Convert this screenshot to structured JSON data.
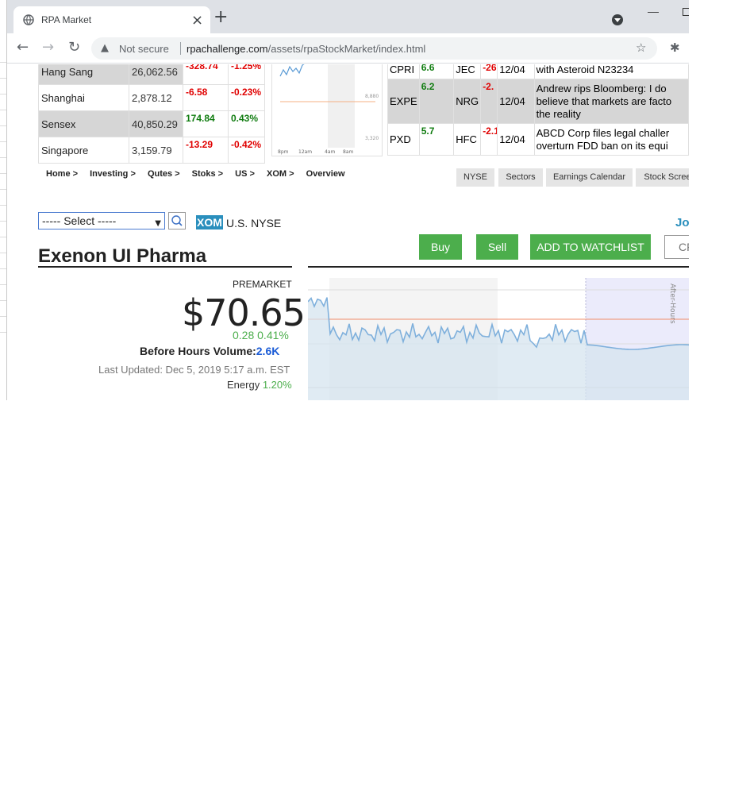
{
  "browser": {
    "tab_title": "RPA Market",
    "new_tab": "+",
    "close_tab": "×",
    "security_label": "Not secure",
    "url_host": "rpachallenge.com",
    "url_path": "/assets/rpaStockMarket/index.html"
  },
  "indices": [
    {
      "name": "Hang Sang",
      "value": "26,062.56",
      "change": "-328.74",
      "percent": "-1.25%",
      "direction": "down"
    },
    {
      "name": "Shanghai",
      "value": "2,878.12",
      "change": "-6.58",
      "percent": "-0.23%",
      "direction": "down"
    },
    {
      "name": "Sensex",
      "value": "40,850.29",
      "change": "174.84",
      "percent": "0.43%",
      "direction": "up"
    },
    {
      "name": "Singapore",
      "value": "3,159.79",
      "change": "-13.29",
      "percent": "-0.42%",
      "direction": "down"
    }
  ],
  "mini_chart": {
    "y_labels": [
      "8,880",
      "3,320"
    ],
    "x_labels": [
      "8pm",
      "12am",
      "4am",
      "8am"
    ]
  },
  "movers": [
    {
      "sym": "CPRI",
      "ch": "6.6",
      "sym2": "JEC",
      "ch2": "-26",
      "date": "12/04",
      "news": "with Asteroid N23234"
    },
    {
      "sym": "EXPE",
      "ch": "6.2",
      "sym2": "NRG",
      "ch2": "-2.",
      "date": "12/04",
      "news1": "Andrew rips Bloomberg: I do",
      "news2": "believe that markets are facto",
      "news3": "the reality"
    },
    {
      "sym": "PXD",
      "ch": "5.7",
      "sym2": "HFC",
      "ch2": "-2.1",
      "date": "12/04",
      "news1": "ABCD Corp files legal challer",
      "news2": "overturn FDD ban on its equi"
    }
  ],
  "breadcrumbs": [
    "Home >",
    "Investing >",
    "Qutes >",
    "Stoks >",
    "US >",
    "XOM >",
    "Overview"
  ],
  "top_nav": [
    "NYSE",
    "Sectors",
    "Earnings Calendar",
    "Stock Scree"
  ],
  "select": {
    "value": "----- Select -----"
  },
  "ticker": "XOM",
  "exchange": "U.S. NYSE",
  "join_link": "Jo",
  "actions": {
    "buy": "Buy",
    "sell": "Sell",
    "watchlist": "ADD TO WATCHLIST",
    "extra": "CF"
  },
  "company": "Exenon UI Pharma",
  "quote": {
    "session": "PREMARKET",
    "price": "$70.65",
    "change": "0.28 0.41%",
    "volume_label": "Before Hours Volume:",
    "volume_value": "2.6K",
    "updated": "Last Updated: Dec 5, 2019 5:17 a.m. EST",
    "sector_label": "Energy",
    "sector_change": "1.20%"
  },
  "big_chart": {
    "after_hours_label": "After-Hours"
  },
  "colors": {
    "negative": "#e00000",
    "positive": "#107c10",
    "accent_green": "#4cae4c",
    "ticker_blue": "#2a8fbd"
  }
}
